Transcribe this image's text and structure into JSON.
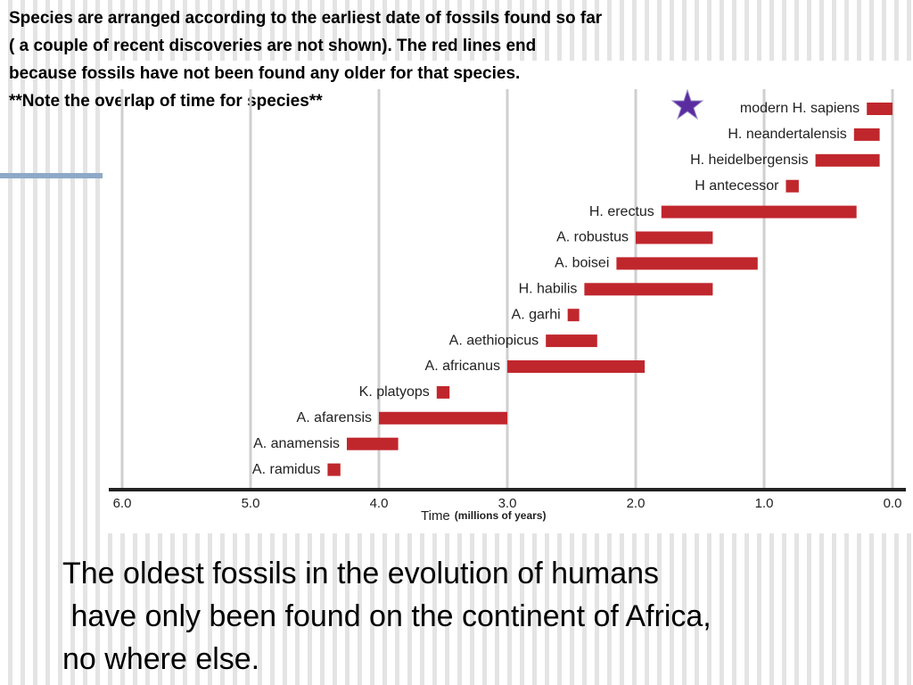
{
  "header": {
    "lines": [
      "Species are arranged according to the earliest date of fossils found so far",
      "( a couple of recent discoveries are not shown). The red lines end",
      "because fossils have not been found any older for that species.",
      "**Note the overlap of time for species**"
    ]
  },
  "chart_data": {
    "type": "range-bar",
    "categories": [
      "modern H. sapiens",
      "H. neandertalensis",
      "H. heidelbergensis",
      "H antecessor",
      "H. erectus",
      "A. robustus",
      "A. boisei",
      "H. habilis",
      "A. garhi",
      "A. aethiopicus",
      "A. africanus",
      "K. platyops",
      "A. afarensis",
      "A. anamensis",
      "A. ramidus"
    ],
    "starts": [
      0.2,
      0.3,
      0.6,
      0.83,
      1.8,
      2.0,
      2.15,
      2.4,
      2.53,
      2.7,
      3.0,
      3.55,
      4.0,
      4.25,
      4.4
    ],
    "ends": [
      0.0,
      0.1,
      0.1,
      0.73,
      0.28,
      1.4,
      1.05,
      1.4,
      2.44,
      2.3,
      1.93,
      3.45,
      3.0,
      3.85,
      4.3
    ],
    "color": "#c0272d",
    "xlim": [
      6,
      0
    ],
    "xticks": [
      {
        "value": 6,
        "label": "6.0"
      },
      {
        "value": 5,
        "label": "5.0"
      },
      {
        "value": 4,
        "label": "4.0"
      },
      {
        "value": 3,
        "label": "3.0"
      },
      {
        "value": 2,
        "label": "2.0"
      },
      {
        "value": 1,
        "label": "1.0"
      },
      {
        "value": 0,
        "label": "0.0"
      }
    ],
    "grid": true,
    "xlabel": "Time",
    "xlabel_note": "(millions of years)"
  },
  "footer": {
    "lines": [
      "The oldest fossils in the evolution of humans",
      " have only been found on the continent of Africa,",
      "no where else."
    ]
  }
}
